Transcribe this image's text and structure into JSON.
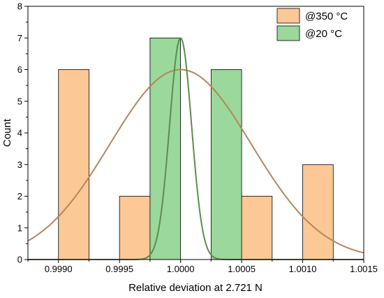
{
  "chart_data": {
    "type": "bar",
    "xlabel": "Relative deviation at 2.721 N",
    "ylabel": "Count",
    "xlim": [
      0.99875,
      1.0015
    ],
    "ylim": [
      0,
      8
    ],
    "x_ticks": [
      0.999,
      0.9995,
      1.0,
      1.0005,
      1.001,
      1.0015
    ],
    "x_tick_labels": [
      "0.9990",
      "0.9995",
      "1.0000",
      "1.0005",
      "1.0010",
      "1.0015"
    ],
    "y_ticks": [
      0,
      1,
      2,
      3,
      4,
      5,
      6,
      7,
      8
    ],
    "y_tick_labels": [
      "0",
      "1",
      "2",
      "3",
      "4",
      "5",
      "6",
      "7",
      "8"
    ],
    "legend_position": "top-right",
    "series": [
      {
        "name": "@350 °C",
        "fill": "#fcc896",
        "stroke": "#000000",
        "bins": [
          {
            "x0": 0.999,
            "x1": 0.99925,
            "count": 6
          },
          {
            "x0": 0.9995,
            "x1": 0.99975,
            "count": 2
          },
          {
            "x0": 1.0005,
            "x1": 1.00075,
            "count": 2
          },
          {
            "x0": 1.001,
            "x1": 1.00125,
            "count": 3
          }
        ],
        "fit": {
          "type": "normal",
          "mean": 1.0,
          "sd": 0.00058,
          "peak": 6.0,
          "color": "#b5865a"
        }
      },
      {
        "name": "@20 °C",
        "fill": "#9bd89b",
        "stroke": "#000000",
        "bins": [
          {
            "x0": 0.99975,
            "x1": 1.0,
            "count": 7
          },
          {
            "x0": 1.00025,
            "x1": 1.0005,
            "count": 6
          }
        ],
        "fit": {
          "type": "normal",
          "mean": 1.0,
          "sd": 9e-05,
          "peak": 7.0,
          "color": "#5d8c4f"
        }
      }
    ]
  }
}
